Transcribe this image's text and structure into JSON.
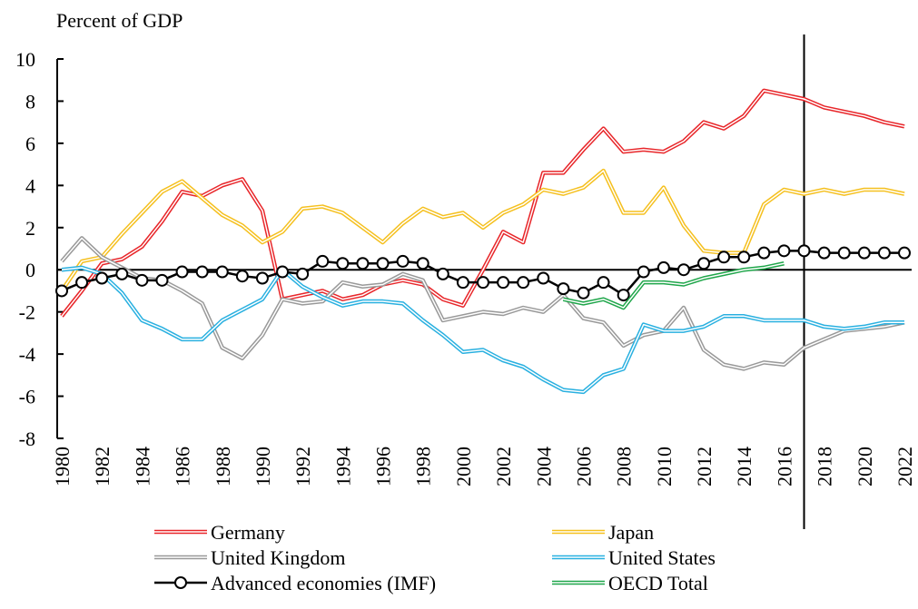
{
  "chart_data": {
    "type": "line",
    "y_label": "Percent of GDP",
    "x": [
      1980,
      1981,
      1982,
      1983,
      1984,
      1985,
      1986,
      1987,
      1988,
      1989,
      1990,
      1991,
      1992,
      1993,
      1994,
      1995,
      1996,
      1997,
      1998,
      1999,
      2000,
      2001,
      2002,
      2003,
      2004,
      2005,
      2006,
      2007,
      2008,
      2009,
      2010,
      2011,
      2012,
      2013,
      2014,
      2015,
      2016,
      2017,
      2018,
      2019,
      2020,
      2021,
      2022
    ],
    "xlim": [
      1980,
      2022
    ],
    "xticks": [
      1980,
      1982,
      1984,
      1986,
      1988,
      1990,
      1992,
      1994,
      1996,
      1998,
      2000,
      2002,
      2004,
      2006,
      2008,
      2010,
      2012,
      2014,
      2016,
      2018,
      2020,
      2022
    ],
    "ylim": [
      -8,
      10
    ],
    "yticks": [
      -8,
      -6,
      -4,
      -2,
      0,
      2,
      4,
      6,
      8,
      10
    ],
    "vline_x": 2017,
    "legend": "bottom",
    "series": [
      {
        "name": "Germany",
        "color": "#e8262a",
        "style": "double",
        "values": [
          -2.2,
          -1.0,
          0.3,
          0.5,
          1.1,
          2.3,
          3.7,
          3.5,
          4.0,
          4.3,
          2.8,
          -1.4,
          -1.2,
          -1.0,
          -1.4,
          -1.2,
          -0.7,
          -0.5,
          -0.7,
          -1.4,
          -1.7,
          0.0,
          1.8,
          1.3,
          4.6,
          4.6,
          5.7,
          6.7,
          5.6,
          5.7,
          5.6,
          6.1,
          7.0,
          6.7,
          7.3,
          8.5,
          8.3,
          8.1,
          7.7,
          7.5,
          7.3,
          7.0,
          6.8
        ]
      },
      {
        "name": "Japan",
        "color": "#f5c01f",
        "style": "double",
        "values": [
          -1.0,
          0.4,
          0.6,
          1.7,
          2.7,
          3.7,
          4.2,
          3.4,
          2.6,
          2.1,
          1.3,
          1.8,
          2.9,
          3.0,
          2.7,
          2.0,
          1.3,
          2.2,
          2.9,
          2.5,
          2.7,
          2.0,
          2.7,
          3.1,
          3.8,
          3.6,
          3.9,
          4.7,
          2.7,
          2.7,
          3.9,
          2.1,
          0.9,
          0.8,
          0.8,
          3.1,
          3.8,
          3.6,
          3.8,
          3.6,
          3.8,
          3.8,
          3.6
        ]
      },
      {
        "name": "United Kingdom",
        "color": "#999999",
        "style": "double",
        "values": [
          0.4,
          1.5,
          0.6,
          0.1,
          -0.4,
          -0.5,
          -1.0,
          -1.6,
          -3.7,
          -4.2,
          -3.1,
          -1.4,
          -1.6,
          -1.5,
          -0.6,
          -0.8,
          -0.7,
          -0.2,
          -0.5,
          -2.4,
          -2.2,
          -2.0,
          -2.1,
          -1.8,
          -2.0,
          -1.2,
          -2.3,
          -2.5,
          -3.6,
          -3.1,
          -2.9,
          -1.8,
          -3.8,
          -4.5,
          -4.7,
          -4.4,
          -4.5,
          -3.7,
          -3.3,
          -2.9,
          -2.8,
          -2.7,
          -2.5
        ]
      },
      {
        "name": "United States",
        "color": "#29b0e0",
        "style": "double",
        "values": [
          0.0,
          0.1,
          -0.2,
          -1.1,
          -2.4,
          -2.8,
          -3.3,
          -3.3,
          -2.4,
          -1.9,
          -1.4,
          0.0,
          -0.8,
          -1.3,
          -1.7,
          -1.5,
          -1.5,
          -1.6,
          -2.4,
          -3.1,
          -3.9,
          -3.8,
          -4.3,
          -4.6,
          -5.2,
          -5.7,
          -5.8,
          -5.0,
          -4.7,
          -2.6,
          -2.9,
          -2.9,
          -2.7,
          -2.2,
          -2.2,
          -2.4,
          -2.4,
          -2.4,
          -2.7,
          -2.8,
          -2.7,
          -2.5,
          -2.5
        ]
      },
      {
        "name": "Advanced economies (IMF)",
        "color": "#000000",
        "style": "markers",
        "values": [
          -1.0,
          -0.6,
          -0.4,
          -0.2,
          -0.5,
          -0.5,
          -0.1,
          -0.1,
          -0.1,
          -0.3,
          -0.4,
          -0.1,
          -0.2,
          0.4,
          0.3,
          0.3,
          0.3,
          0.4,
          0.3,
          -0.2,
          -0.6,
          -0.6,
          -0.6,
          -0.6,
          -0.4,
          -0.9,
          -1.1,
          -0.6,
          -1.2,
          -0.1,
          0.1,
          0.0,
          0.3,
          0.6,
          0.6,
          0.8,
          0.9,
          0.9,
          0.8,
          0.8,
          0.8,
          0.8,
          0.8
        ]
      },
      {
        "name": "OECD Total",
        "color": "#1fa64a",
        "style": "double",
        "values": [
          null,
          null,
          null,
          null,
          null,
          null,
          null,
          null,
          null,
          null,
          null,
          null,
          null,
          null,
          null,
          null,
          null,
          null,
          null,
          null,
          null,
          null,
          null,
          null,
          null,
          -1.4,
          -1.6,
          -1.4,
          -1.8,
          -0.6,
          -0.6,
          -0.7,
          -0.4,
          -0.2,
          0.0,
          0.1,
          0.3,
          null,
          null,
          null,
          null,
          null,
          null
        ]
      }
    ]
  }
}
